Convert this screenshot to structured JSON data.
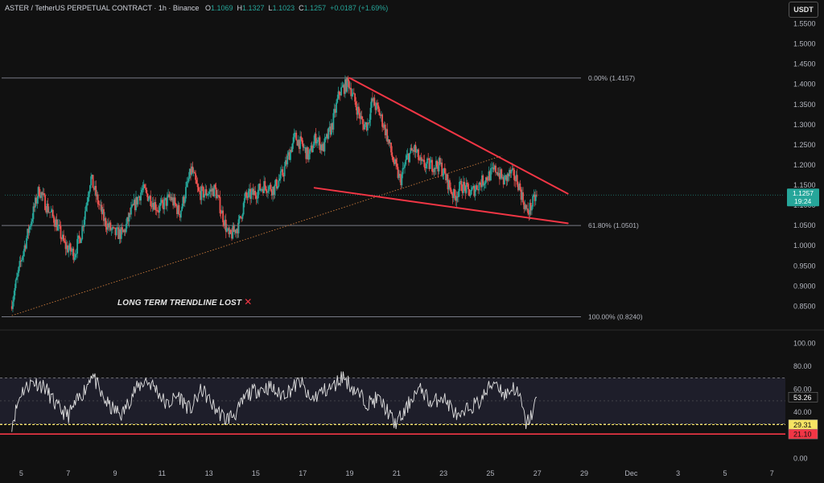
{
  "header": {
    "symbol": "ASTER / TetherUS PERPETUAL CONTRACT · 1h · Binance",
    "o_label": "O",
    "o": "1.1069",
    "h_label": "H",
    "h": "1.1327",
    "l_label": "L",
    "l": "1.1023",
    "c_label": "C",
    "c": "1.1257",
    "change": "+0.0187 (+1.69%)"
  },
  "currency_button": "USDT",
  "annotation": {
    "text": "LONG TERM TRENDLINE LOST",
    "mark": "✕"
  },
  "colors": {
    "background": "#111111",
    "up": "#26a69a",
    "down": "#ef5350",
    "pattern": "#f23645",
    "fib": "#787b86",
    "trend": "#c8793b",
    "rsi_line": "#e0e0e0",
    "rsi_band": "#2a2a40",
    "price_tag": "#26a69a",
    "rsi_tag_yellow": "#f7e463",
    "rsi_tag_red": "#f23645"
  },
  "chart_data": [
    {
      "type": "candlestick",
      "title": "ASTER / TetherUS PERPETUAL CONTRACT · 1h · Binance",
      "x_ticks": [
        "5",
        "7",
        "9",
        "11",
        "13",
        "15",
        "17",
        "19",
        "21",
        "23",
        "25",
        "27",
        "29",
        "Dec",
        "3",
        "5",
        "7"
      ],
      "x_tick_days": [
        5,
        7,
        9,
        11,
        13,
        15,
        17,
        19,
        21,
        23,
        25,
        27,
        29,
        31,
        33,
        35,
        37
      ],
      "xlim": [
        4.3,
        37.3
      ],
      "ylim": [
        0.795,
        1.585
      ],
      "y_ticks": [
        "1.5500",
        "1.5000",
        "1.4500",
        "1.4000",
        "1.3500",
        "1.3000",
        "1.2500",
        "1.2000",
        "1.1500",
        "1.1000",
        "1.0500",
        "1.0000",
        "0.9500",
        "0.9000",
        "0.8500"
      ],
      "last_price": "1.1257",
      "last_price_value": 1.1257,
      "countdown": "19:24",
      "fib_levels": [
        {
          "label": "0.00% (1.4157)",
          "value": 1.4157
        },
        {
          "label": "61.80% (1.0501)",
          "value": 1.0501
        },
        {
          "label": "100.00% (0.8240)",
          "value": 0.824
        }
      ],
      "pattern_lines": [
        {
          "name": "upper-trendline",
          "start": [
            19.0,
            1.4157
          ],
          "end": [
            28.3,
            1.129
          ]
        },
        {
          "name": "lower-trendline",
          "start": [
            17.5,
            1.1435
          ],
          "end": [
            28.3,
            1.0555
          ]
        }
      ],
      "long_term_trendline": {
        "start": [
          4.6,
          0.827
        ],
        "end": [
          25.5,
          1.223
        ]
      },
      "path_anchors": [
        [
          4.6,
          0.85
        ],
        [
          5.1,
          0.98
        ],
        [
          5.8,
          1.14
        ],
        [
          6.1,
          1.1
        ],
        [
          6.5,
          1.06
        ],
        [
          6.9,
          1.0
        ],
        [
          7.3,
          0.98
        ],
        [
          7.6,
          1.03
        ],
        [
          8.0,
          1.17
        ],
        [
          8.3,
          1.11
        ],
        [
          8.6,
          1.06
        ],
        [
          9.0,
          1.03
        ],
        [
          9.4,
          1.03
        ],
        [
          9.7,
          1.08
        ],
        [
          10.2,
          1.14
        ],
        [
          10.5,
          1.12
        ],
        [
          10.9,
          1.09
        ],
        [
          11.4,
          1.12
        ],
        [
          11.8,
          1.08
        ],
        [
          12.3,
          1.19
        ],
        [
          12.6,
          1.13
        ],
        [
          12.9,
          1.13
        ],
        [
          13.3,
          1.14
        ],
        [
          13.6,
          1.08
        ],
        [
          13.9,
          1.02
        ],
        [
          14.3,
          1.05
        ],
        [
          14.6,
          1.12
        ],
        [
          15.0,
          1.13
        ],
        [
          15.4,
          1.15
        ],
        [
          15.8,
          1.14
        ],
        [
          16.2,
          1.18
        ],
        [
          16.7,
          1.27
        ],
        [
          17.0,
          1.25
        ],
        [
          17.3,
          1.22
        ],
        [
          17.6,
          1.27
        ],
        [
          17.9,
          1.24
        ],
        [
          18.3,
          1.3
        ],
        [
          18.6,
          1.38
        ],
        [
          19.0,
          1.405
        ],
        [
          19.3,
          1.35
        ],
        [
          19.6,
          1.3
        ],
        [
          19.8,
          1.3
        ],
        [
          20.0,
          1.36
        ],
        [
          20.3,
          1.33
        ],
        [
          20.6,
          1.28
        ],
        [
          20.9,
          1.21
        ],
        [
          21.2,
          1.16
        ],
        [
          21.5,
          1.22
        ],
        [
          21.8,
          1.24
        ],
        [
          22.1,
          1.2
        ],
        [
          22.5,
          1.2
        ],
        [
          22.9,
          1.2
        ],
        [
          23.2,
          1.16
        ],
        [
          23.5,
          1.12
        ],
        [
          23.8,
          1.15
        ],
        [
          24.2,
          1.13
        ],
        [
          24.5,
          1.15
        ],
        [
          24.9,
          1.17
        ],
        [
          25.3,
          1.19
        ],
        [
          25.6,
          1.16
        ],
        [
          25.9,
          1.18
        ],
        [
          26.2,
          1.16
        ],
        [
          26.4,
          1.12
        ],
        [
          26.6,
          1.08
        ],
        [
          26.8,
          1.1
        ],
        [
          27.0,
          1.1257
        ]
      ]
    },
    {
      "type": "line",
      "title": "RSI",
      "xlim": [
        4.3,
        37.3
      ],
      "ylim": [
        -4,
        106
      ],
      "y_ticks": [
        "100.00",
        "80.00",
        "60.00",
        "40.00",
        "20.00",
        "0.00"
      ],
      "y_tick_values": [
        100,
        80,
        60,
        40,
        20,
        0
      ],
      "band": [
        30,
        70
      ],
      "current": "53.26",
      "current_value": 53.26,
      "level_yellow": "29.31",
      "level_yellow_value": 29.31,
      "level_red": "21.10",
      "level_red_value": 21.1,
      "path_anchors": [
        [
          4.6,
          30
        ],
        [
          5.0,
          58
        ],
        [
          5.5,
          67
        ],
        [
          6.0,
          62
        ],
        [
          6.5,
          45
        ],
        [
          7.0,
          37
        ],
        [
          7.4,
          50
        ],
        [
          7.8,
          63
        ],
        [
          8.0,
          75
        ],
        [
          8.4,
          55
        ],
        [
          8.8,
          44
        ],
        [
          9.3,
          38
        ],
        [
          9.8,
          58
        ],
        [
          10.3,
          68
        ],
        [
          10.7,
          62
        ],
        [
          11.2,
          46
        ],
        [
          11.7,
          55
        ],
        [
          12.2,
          42
        ],
        [
          12.7,
          60
        ],
        [
          13.2,
          45
        ],
        [
          13.7,
          34
        ],
        [
          14.2,
          40
        ],
        [
          14.6,
          55
        ],
        [
          15.1,
          60
        ],
        [
          15.6,
          62
        ],
        [
          16.0,
          55
        ],
        [
          16.5,
          60
        ],
        [
          16.9,
          67
        ],
        [
          17.3,
          50
        ],
        [
          17.8,
          58
        ],
        [
          18.3,
          62
        ],
        [
          18.7,
          72
        ],
        [
          19.0,
          64
        ],
        [
          19.4,
          55
        ],
        [
          19.8,
          48
        ],
        [
          20.2,
          52
        ],
        [
          20.6,
          42
        ],
        [
          20.9,
          30
        ],
        [
          21.3,
          38
        ],
        [
          21.7,
          55
        ],
        [
          22.1,
          60
        ],
        [
          22.5,
          46
        ],
        [
          22.9,
          55
        ],
        [
          23.3,
          45
        ],
        [
          23.7,
          33
        ],
        [
          24.1,
          45
        ],
        [
          24.5,
          48
        ],
        [
          24.9,
          60
        ],
        [
          25.2,
          68
        ],
        [
          25.6,
          55
        ],
        [
          26.0,
          62
        ],
        [
          26.3,
          50
        ],
        [
          26.5,
          30
        ],
        [
          26.7,
          35
        ],
        [
          26.9,
          47
        ],
        [
          27.0,
          53.26
        ]
      ]
    }
  ]
}
